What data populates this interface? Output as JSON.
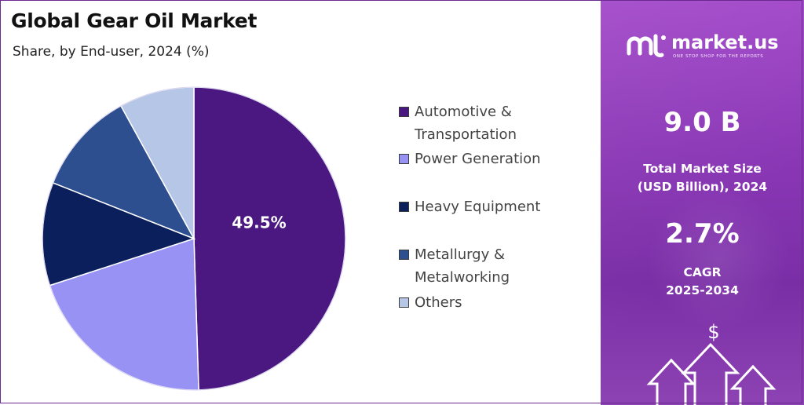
{
  "title": "Global Gear Oil Market",
  "subtitle": "Share, by End-user, 2024 (%)",
  "chart_data": {
    "type": "pie",
    "title": "Global Gear Oil Market",
    "subtitle": "Share, by End-user, 2024 (%)",
    "legend_position": "right",
    "slices": [
      {
        "label": "Automotive &\nTransportation",
        "value": 49.5,
        "color": "#4a1880",
        "data_label": "49.5%"
      },
      {
        "label": "Power Generation",
        "value": 20.5,
        "color": "#9892f5"
      },
      {
        "label": "Heavy Equipment",
        "value": 11.0,
        "color": "#0a1f5c"
      },
      {
        "label": "Metallurgy &\nMetalworking",
        "value": 11.0,
        "color": "#2e4f8f"
      },
      {
        "label": "Others",
        "value": 8.0,
        "color": "#b6c6e6"
      }
    ]
  },
  "sidebar": {
    "brand": "market.us",
    "tagline": "ONE STOP SHOP FOR THE REPORTS",
    "market_size_value": "9.0 B",
    "market_size_label_line1": "Total Market Size",
    "market_size_label_line2": "(USD Billion), 2024",
    "cagr_value": "2.7%",
    "cagr_label_line1": "CAGR",
    "cagr_label_line2": "2025-2034",
    "currency_symbol": "$"
  }
}
